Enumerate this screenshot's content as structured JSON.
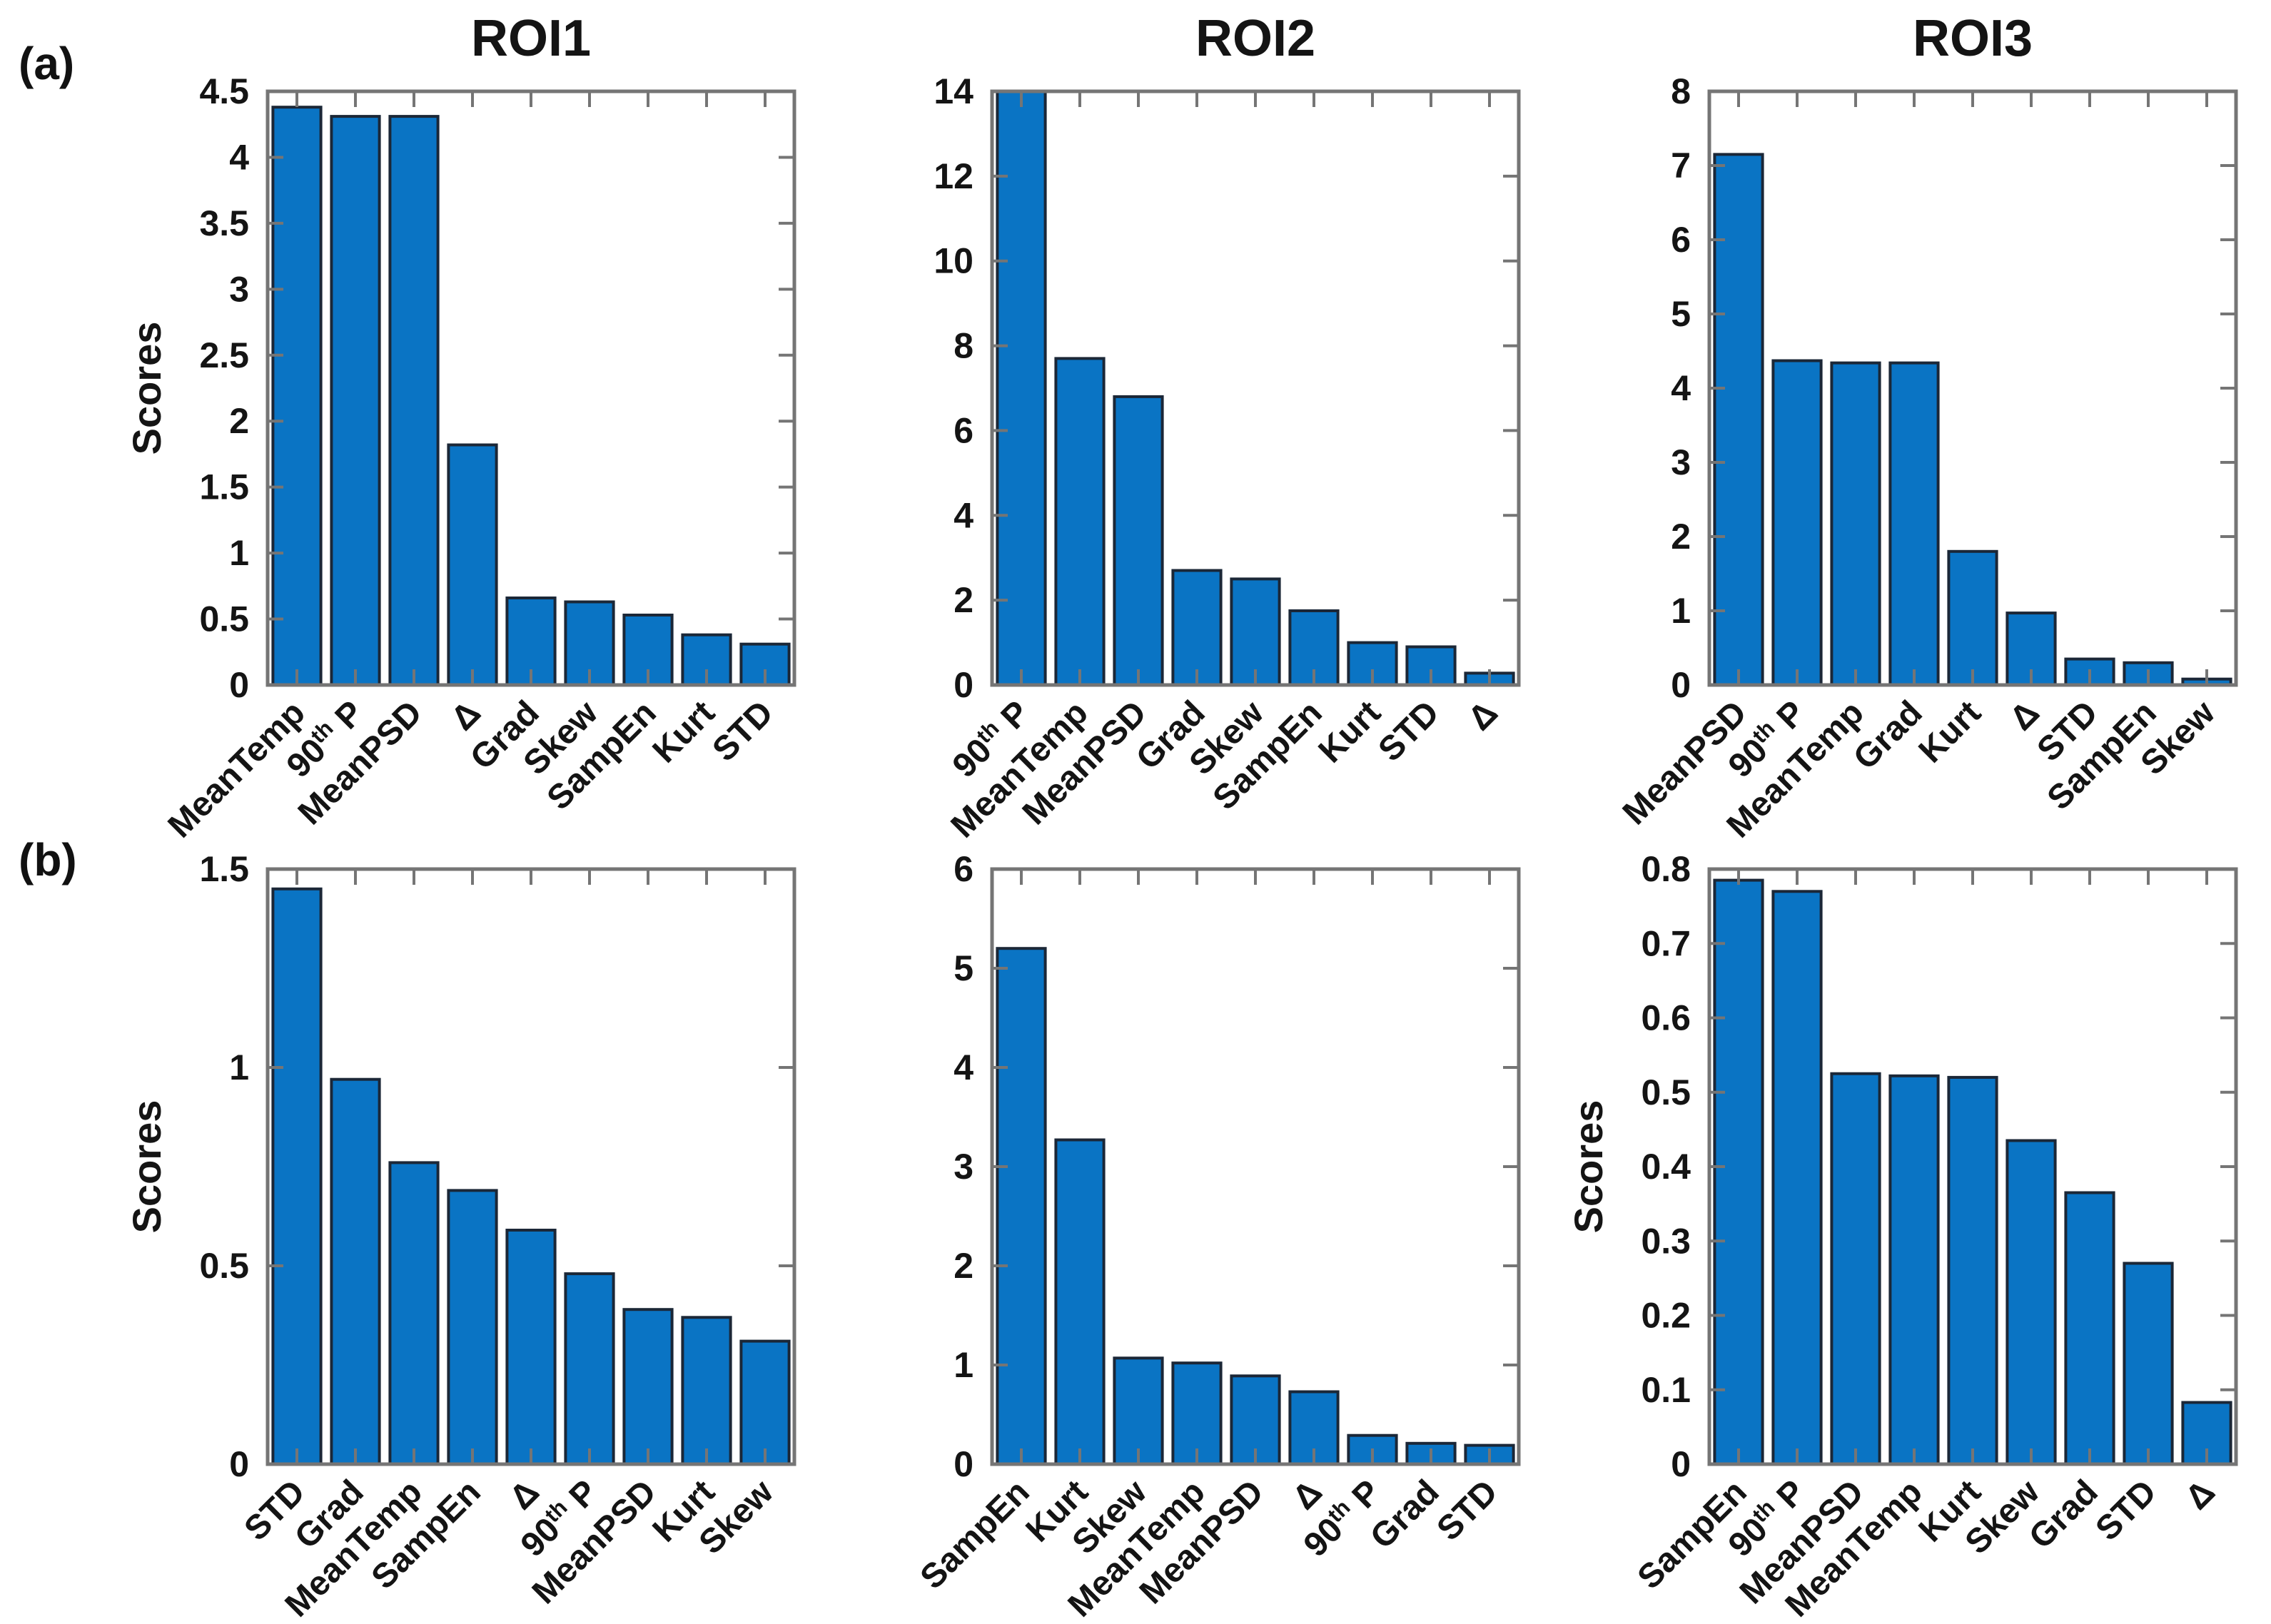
{
  "figure": {
    "background": "#ffffff",
    "colors": {
      "bar_fill": "#0a74c4",
      "bar_edge": "#1b2737",
      "axis": "#757575",
      "text": "#141414"
    }
  },
  "panel_labels": [
    "(a)",
    "(b)"
  ],
  "ylabel": "Scores",
  "chart_data": [
    {
      "type": "bar",
      "panel": "a",
      "title": "ROI1",
      "show_ylabel": true,
      "ylim": [
        0,
        4.5
      ],
      "yticks": [
        0,
        0.5,
        1,
        1.5,
        2,
        2.5,
        3,
        3.5,
        4,
        4.5
      ],
      "categories": [
        "MeanTemp",
        "90th P",
        "MeanPSD",
        "Δ",
        "Grad",
        "Skew",
        "SampEn",
        "Kurt",
        "STD"
      ],
      "values": [
        4.38,
        4.31,
        4.31,
        1.82,
        0.66,
        0.63,
        0.53,
        0.38,
        0.31
      ],
      "grid": false,
      "legend": false
    },
    {
      "type": "bar",
      "panel": "a",
      "title": "ROI2",
      "show_ylabel": false,
      "ylim": [
        0,
        14
      ],
      "yticks": [
        0,
        2,
        4,
        6,
        8,
        10,
        12,
        14
      ],
      "categories": [
        "90th P",
        "MeanTemp",
        "MeanPSD",
        "Grad",
        "Skew",
        "SampEn",
        "Kurt",
        "STD",
        "Δ"
      ],
      "values": [
        14,
        7.7,
        6.8,
        2.7,
        2.5,
        1.75,
        1.0,
        0.9,
        0.28
      ],
      "grid": false,
      "legend": false
    },
    {
      "type": "bar",
      "panel": "a",
      "title": "ROI3",
      "show_ylabel": false,
      "ylim": [
        0,
        8
      ],
      "yticks": [
        0,
        1,
        2,
        3,
        4,
        5,
        6,
        7,
        8
      ],
      "categories": [
        "MeanPSD",
        "90th P",
        "MeanTemp",
        "Grad",
        "Kurt",
        "Δ",
        "STD",
        "SampEn",
        "Skew"
      ],
      "values": [
        7.15,
        4.37,
        4.34,
        4.34,
        1.8,
        0.97,
        0.35,
        0.3,
        0.08
      ],
      "grid": false,
      "legend": false
    },
    {
      "type": "bar",
      "panel": "b",
      "title": "",
      "show_ylabel": true,
      "ylim": [
        0,
        1.5
      ],
      "yticks": [
        0,
        0.5,
        1,
        1.5
      ],
      "categories": [
        "STD",
        "Grad",
        "MeanTemp",
        "SampEn",
        "Δ",
        "90th P",
        "MeanPSD",
        "Kurt",
        "Skew"
      ],
      "values": [
        1.45,
        0.97,
        0.76,
        0.69,
        0.59,
        0.48,
        0.39,
        0.37,
        0.31
      ],
      "grid": false,
      "legend": false
    },
    {
      "type": "bar",
      "panel": "b",
      "title": "",
      "show_ylabel": false,
      "ylim": [
        0,
        6
      ],
      "yticks": [
        0,
        1,
        2,
        3,
        4,
        5,
        6
      ],
      "categories": [
        "SampEn",
        "Kurt",
        "Skew",
        "MeanTemp",
        "MeanPSD",
        "Δ",
        "90th P",
        "Grad",
        "STD"
      ],
      "values": [
        5.2,
        3.27,
        1.07,
        1.02,
        0.89,
        0.73,
        0.29,
        0.21,
        0.19
      ],
      "grid": false,
      "legend": false
    },
    {
      "type": "bar",
      "panel": "b",
      "title": "",
      "show_ylabel": true,
      "ylim": [
        0,
        0.8
      ],
      "yticks": [
        0,
        0.1,
        0.2,
        0.3,
        0.4,
        0.5,
        0.6,
        0.7,
        0.8
      ],
      "categories": [
        "SampEn",
        "90th P",
        "MeanPSD",
        "MeanTemp",
        "Kurt",
        "Skew",
        "Grad",
        "STD",
        "Δ"
      ],
      "values": [
        0.785,
        0.77,
        0.525,
        0.522,
        0.52,
        0.435,
        0.365,
        0.27,
        0.083
      ],
      "grid": false,
      "legend": false
    }
  ]
}
